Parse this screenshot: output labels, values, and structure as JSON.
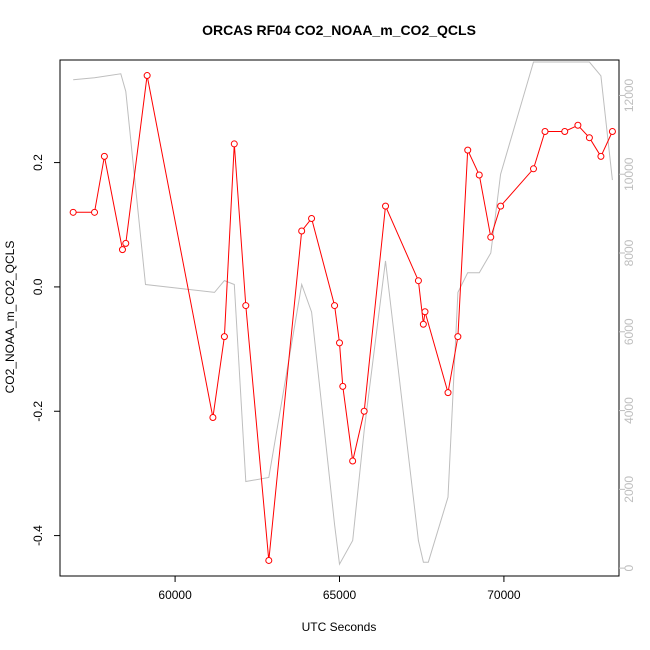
{
  "chart_data": {
    "type": "line",
    "title": "ORCAS RF04 CO2_NOAA_m_CO2_QCLS",
    "xlabel": "UTC Seconds",
    "ylabel": "CO2_NOAA_m_CO2_QCLS",
    "xlim": [
      56500,
      73500
    ],
    "ylim": [
      -0.465,
      0.365
    ],
    "y2lim": [
      -200,
      12900
    ],
    "xticks": [
      60000,
      65000,
      70000
    ],
    "yticks": [
      -0.4,
      -0.2,
      0.0,
      0.2
    ],
    "y2ticks": [
      0,
      2000,
      4000,
      6000,
      8000,
      10000,
      12000
    ],
    "xtick_labels": [
      "60000",
      "65000",
      "70000"
    ],
    "ytick_labels": [
      "-0.4",
      "-0.2",
      "0.0",
      "0.2"
    ],
    "y2tick_labels": [
      "0",
      "2000",
      "4000",
      "6000",
      "8000",
      "10000",
      "12000"
    ],
    "grid": false,
    "colors": {
      "primary": "#ff0000",
      "secondary": "#bebebe",
      "frame": "#000000"
    },
    "series": [
      {
        "axis": "left",
        "markers": "open-circle",
        "color": "#ff0000",
        "x": [
          56900,
          57550,
          57850,
          58400,
          58500,
          59150,
          61150,
          61500,
          61800,
          62150,
          62850,
          63850,
          64150,
          64850,
          65000,
          65100,
          65400,
          65750,
          66400,
          67400,
          67550,
          67600,
          68300,
          68600,
          68900,
          69250,
          69600,
          69900,
          70900,
          71250,
          71850,
          72250,
          72600,
          72950,
          73300
        ],
        "y": [
          0.12,
          0.12,
          0.21,
          0.06,
          0.07,
          0.34,
          -0.21,
          -0.08,
          0.23,
          -0.03,
          -0.44,
          0.09,
          0.11,
          -0.03,
          -0.09,
          -0.16,
          -0.28,
          -0.2,
          0.13,
          0.01,
          -0.06,
          -0.04,
          -0.17,
          -0.08,
          0.22,
          0.18,
          0.08,
          0.13,
          0.19,
          0.25,
          0.25,
          0.26,
          0.24,
          0.21,
          0.25
        ]
      },
      {
        "axis": "right",
        "markers": "none",
        "color": "#bebebe",
        "x": [
          56900,
          57550,
          58350,
          58500,
          59100,
          61200,
          61500,
          61800,
          62150,
          62850,
          63850,
          64150,
          64850,
          65000,
          65400,
          65750,
          66400,
          67400,
          67550,
          67700,
          68300,
          68600,
          68900,
          69250,
          69600,
          69900,
          70900,
          72600,
          72950,
          73300
        ],
        "y": [
          12400,
          12450,
          12550,
          12100,
          7200,
          7000,
          7300,
          7200,
          2200,
          2300,
          7200,
          6500,
          1100,
          100,
          700,
          3500,
          7800,
          700,
          150,
          150,
          1800,
          7000,
          7500,
          7500,
          8000,
          10000,
          12850,
          12850,
          12500,
          9850
        ]
      }
    ]
  }
}
